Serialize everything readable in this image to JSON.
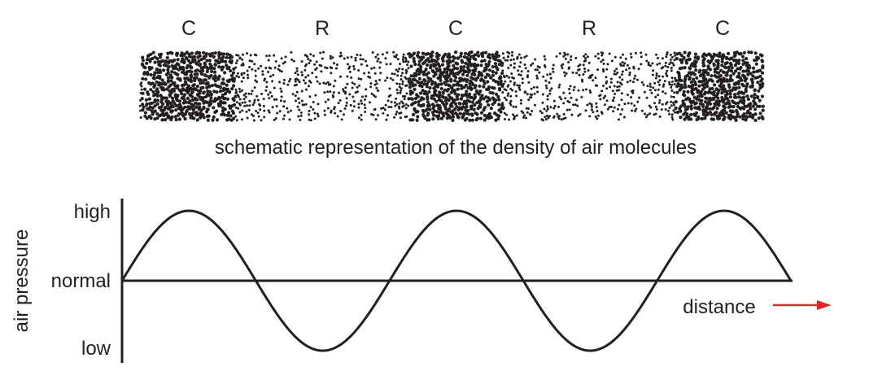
{
  "density_strip": {
    "region_labels": [
      "C",
      "R",
      "C",
      "R",
      "C"
    ],
    "caption": "schematic representation of the density of air molecules"
  },
  "chart_data": {
    "type": "line",
    "curve": "sine",
    "ylabel": "air pressure",
    "xlabel": "distance",
    "y_ticks": [
      "high",
      "normal",
      "low"
    ],
    "y_values": {
      "high": 1,
      "normal": 0,
      "low": -1
    },
    "periods": 2.5,
    "x": [
      0,
      0.25,
      0.5,
      0.75,
      1.0,
      1.25,
      1.5,
      1.75,
      2.0,
      2.25,
      2.5
    ],
    "series": [
      {
        "values": [
          0,
          1,
          0,
          -1,
          0,
          1,
          0,
          -1,
          0,
          1,
          0
        ]
      }
    ],
    "colors": {
      "line": "#231f20",
      "arrow": "#e0262b"
    }
  }
}
